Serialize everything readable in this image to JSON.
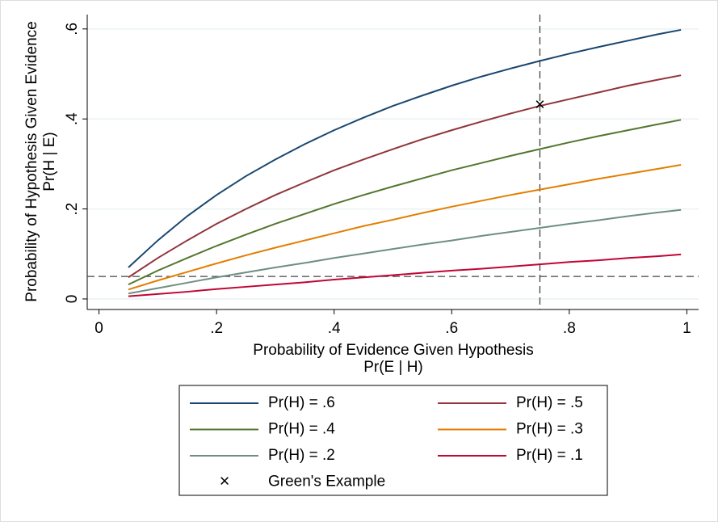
{
  "chart_data": {
    "type": "line",
    "y_label": "Probability of Hypothesis Given Evidence",
    "y_sublabel": "Pr(H | E)",
    "x_label": "Probability of Evidence Given Hypothesis",
    "x_sublabel": "Pr(E | H)",
    "x": [
      0.05,
      0.1,
      0.15,
      0.2,
      0.25,
      0.3,
      0.35,
      0.4,
      0.45,
      0.5,
      0.55,
      0.6,
      0.65,
      0.7,
      0.75,
      0.8,
      0.85,
      0.9,
      0.95,
      0.99
    ],
    "series": [
      {
        "name": "Pr(H) = .6",
        "color": "#1a476f",
        "values": [
          0.07,
          0.13,
          0.184,
          0.231,
          0.273,
          0.31,
          0.344,
          0.375,
          0.403,
          0.429,
          0.452,
          0.474,
          0.494,
          0.512,
          0.529,
          0.545,
          0.56,
          0.574,
          0.588,
          0.598
        ]
      },
      {
        "name": "Pr(H) = .5",
        "color": "#90353b",
        "values": [
          0.048,
          0.091,
          0.13,
          0.167,
          0.2,
          0.231,
          0.259,
          0.286,
          0.31,
          0.333,
          0.355,
          0.375,
          0.394,
          0.412,
          0.429,
          0.444,
          0.459,
          0.474,
          0.487,
          0.497
        ]
      },
      {
        "name": "Pr(H) = .4",
        "color": "#55752f",
        "values": [
          0.032,
          0.063,
          0.091,
          0.118,
          0.143,
          0.167,
          0.189,
          0.211,
          0.231,
          0.25,
          0.268,
          0.286,
          0.302,
          0.318,
          0.333,
          0.348,
          0.362,
          0.375,
          0.388,
          0.398
        ]
      },
      {
        "name": "Pr(H) = .3",
        "color": "#e37e00",
        "values": [
          0.021,
          0.041,
          0.06,
          0.079,
          0.097,
          0.114,
          0.13,
          0.146,
          0.162,
          0.176,
          0.191,
          0.205,
          0.218,
          0.231,
          0.243,
          0.255,
          0.267,
          0.278,
          0.289,
          0.298
        ]
      },
      {
        "name": "Pr(H) = .2",
        "color": "#6e8e84",
        "values": [
          0.012,
          0.024,
          0.036,
          0.048,
          0.059,
          0.07,
          0.08,
          0.091,
          0.101,
          0.111,
          0.121,
          0.13,
          0.14,
          0.149,
          0.158,
          0.167,
          0.175,
          0.184,
          0.192,
          0.198
        ]
      },
      {
        "name": "Pr(H) = .1",
        "color": "#c10534",
        "values": [
          0.006,
          0.011,
          0.016,
          0.022,
          0.027,
          0.032,
          0.037,
          0.043,
          0.048,
          0.053,
          0.058,
          0.063,
          0.067,
          0.072,
          0.077,
          0.082,
          0.086,
          0.091,
          0.095,
          0.099
        ]
      }
    ],
    "point": {
      "name": "Green's Example",
      "marker": "×",
      "x": 0.75,
      "y": 0.43,
      "color": "#000000"
    },
    "xline": 0.75,
    "yline": 0.05,
    "xlim": [
      -0.02,
      1.02
    ],
    "ylim": [
      -0.018,
      0.632
    ],
    "xticks": [
      0,
      {
        "value": 0.2,
        "label": ".2"
      },
      {
        "value": 0.4,
        "label": ".4"
      },
      {
        "value": 0.6,
        "label": ".6"
      },
      {
        "value": 0.8,
        "label": ".8"
      },
      1
    ],
    "yticks": [
      0,
      {
        "value": 0.2,
        "label": ".2"
      },
      {
        "value": 0.4,
        "label": ".4"
      },
      {
        "value": 0.6,
        "label": ".6"
      }
    ],
    "grid": true,
    "legend": "bottom"
  }
}
